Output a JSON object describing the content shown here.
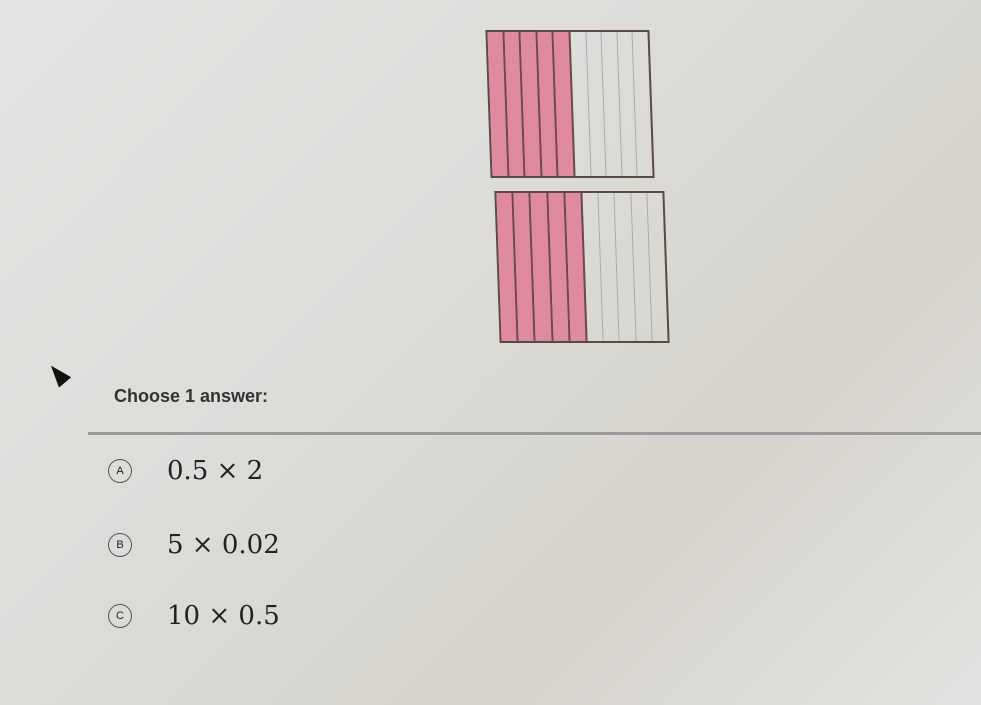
{
  "grids": [
    {
      "columns": 10,
      "shaded": 5
    },
    {
      "columns": 10,
      "shaded": 5
    }
  ],
  "colors": {
    "shaded": "#e08aa0",
    "border": "#5a4a44"
  },
  "prompt": "Choose 1 answer:",
  "choices": [
    {
      "letter": "A",
      "text": "0.5 × 2"
    },
    {
      "letter": "B",
      "text": "5 × 0.02"
    },
    {
      "letter": "C",
      "text": "10 × 0.5"
    }
  ]
}
